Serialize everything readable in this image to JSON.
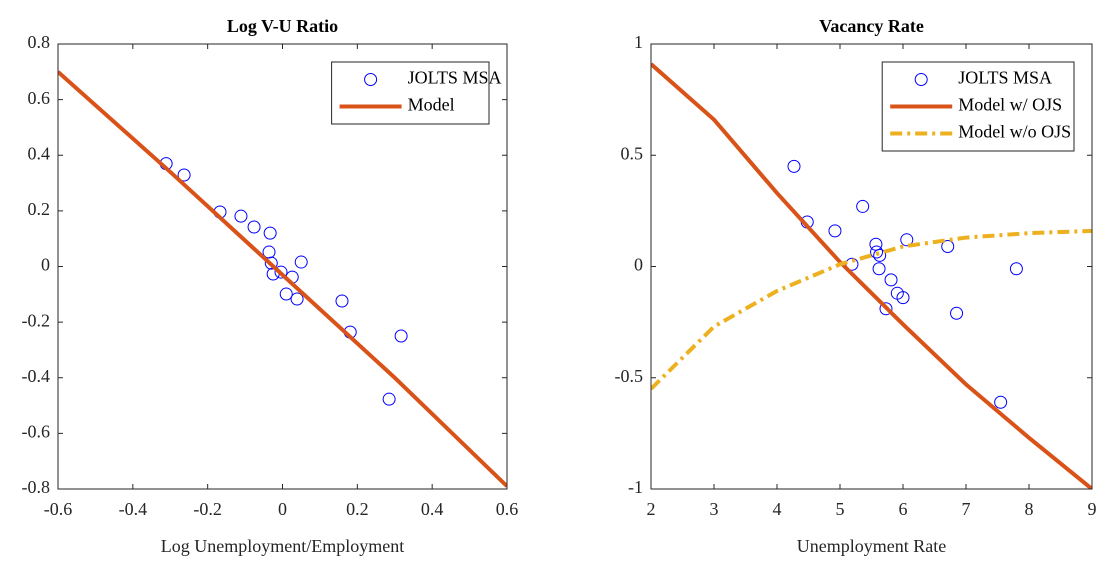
{
  "chart_data": [
    {
      "type": "scatter",
      "title": "Log V-U Ratio",
      "x_label": "Log Unemployment/Employment",
      "xlim": [
        -0.6,
        0.6
      ],
      "ylim": [
        -0.8,
        0.8
      ],
      "xticks": [
        -0.6,
        -0.4,
        -0.2,
        0,
        0.2,
        0.4,
        0.6
      ],
      "yticks": [
        -0.8,
        -0.6,
        -0.4,
        -0.2,
        0,
        0.2,
        0.4,
        0.6,
        0.8
      ],
      "legend": "upper right",
      "series": [
        {
          "name": "JOLTS MSA",
          "color": "#0000ff",
          "style": "markers",
          "x": [
            -0.311,
            -0.263,
            -0.167,
            -0.111,
            -0.076,
            -0.033,
            -0.036,
            -0.03,
            -0.025,
            -0.004,
            0.01,
            0.026,
            0.039,
            0.05,
            0.159,
            0.181,
            0.317,
            0.285
          ],
          "values": [
            0.37,
            0.329,
            0.196,
            0.181,
            0.142,
            0.12,
            0.052,
            0.012,
            -0.027,
            -0.02,
            -0.099,
            -0.038,
            -0.117,
            0.016,
            -0.124,
            -0.236,
            -0.25,
            -0.477
          ]
        },
        {
          "name": "Model",
          "color": "#d95319",
          "style": "solid",
          "x": [
            -0.6,
            -0.3,
            0,
            0.3,
            0.6
          ],
          "values": [
            0.7,
            0.34,
            -0.03,
            -0.4,
            -0.79
          ]
        }
      ]
    },
    {
      "type": "scatter",
      "title": "Vacancy Rate",
      "x_label": "Unemployment Rate",
      "xlim": [
        2,
        9
      ],
      "ylim": [
        -1,
        1
      ],
      "xticks": [
        2,
        3,
        4,
        5,
        6,
        7,
        8,
        9
      ],
      "yticks": [
        -1,
        -0.5,
        0,
        0.5,
        1
      ],
      "legend": "upper right",
      "series": [
        {
          "name": "JOLTS MSA",
          "color": "#0000ff",
          "style": "markers",
          "x": [
            4.27,
            4.48,
            4.92,
            5.36,
            5.19,
            5.57,
            5.58,
            5.63,
            5.62,
            5.81,
            5.73,
            5.91,
            6.0,
            6.06,
            6.71,
            6.85,
            7.8,
            7.55
          ],
          "values": [
            0.45,
            0.2,
            0.16,
            0.27,
            0.01,
            0.1,
            0.065,
            0.05,
            -0.01,
            -0.06,
            -0.19,
            -0.12,
            -0.14,
            0.12,
            0.09,
            -0.21,
            -0.01,
            -0.61
          ]
        },
        {
          "name": "Model w/ OJS",
          "color": "#d95319",
          "style": "solid",
          "x": [
            2,
            3,
            4,
            5,
            6,
            7,
            8,
            9
          ],
          "values": [
            0.91,
            0.66,
            0.33,
            0.02,
            -0.26,
            -0.53,
            -0.77,
            -1.0
          ]
        },
        {
          "name": "Model w/o OJS",
          "color": "#edb120",
          "style": "dashdot",
          "x": [
            2,
            3,
            4,
            5,
            6,
            7,
            8,
            9
          ],
          "values": [
            -0.55,
            -0.27,
            -0.11,
            0.01,
            0.09,
            0.13,
            0.15,
            0.16
          ]
        }
      ]
    }
  ]
}
